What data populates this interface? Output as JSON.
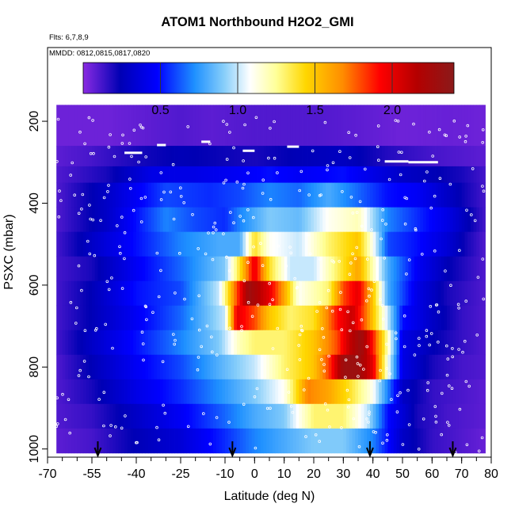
{
  "chart_data": {
    "type": "heatmap",
    "title": "ATOM1 Northbound H2O2_GMI",
    "subtitle_flights": "Flts: 6,7,8,9",
    "subtitle_dates": "MMDD: 0812,0815,0817,0820",
    "xlabel": "Latitude (deg N)",
    "ylabel": "PSXC (mbar)",
    "xlim": [
      -70,
      80
    ],
    "ylim": [
      1020,
      20
    ],
    "x_ticks": [
      -70,
      -55,
      -40,
      -25,
      -10,
      0,
      10,
      20,
      30,
      40,
      50,
      60,
      70,
      80
    ],
    "x_minor_step": 5,
    "y_ticks": [
      200,
      400,
      600,
      800,
      1000
    ],
    "colorbar": {
      "range": [
        0,
        2.4
      ],
      "ticks": [
        0.5,
        1.0,
        1.5,
        2.0
      ],
      "tick_labels": [
        "0.5",
        "1.0",
        "1.5",
        "2.0"
      ],
      "colors": [
        "#8a2be2",
        "#0000b4",
        "#0000ff",
        "#1e90ff",
        "#87cefa",
        "#ffffff",
        "#ffff99",
        "#ffd700",
        "#ff8c00",
        "#ff0000",
        "#b40000",
        "#8b1a1a"
      ],
      "color_positions": [
        0.0,
        0.1,
        0.2,
        0.3,
        0.38,
        0.45,
        0.52,
        0.6,
        0.7,
        0.8,
        0.9,
        1.0
      ]
    },
    "lat_range": [
      -67,
      78
    ],
    "levels": [
      {
        "p_top": 160,
        "p_bot": 260,
        "values": [
          [
            -67,
            0.05
          ],
          [
            -50,
            0.05
          ],
          [
            -35,
            0.08
          ],
          [
            -25,
            0.1
          ],
          [
            -15,
            0.08
          ],
          [
            0,
            0.1
          ],
          [
            20,
            0.1
          ],
          [
            35,
            0.08
          ],
          [
            50,
            0.05
          ],
          [
            65,
            0.06
          ],
          [
            78,
            0.05
          ]
        ]
      },
      {
        "p_top": 260,
        "p_bot": 310,
        "values": [
          [
            -67,
            0.08
          ],
          [
            -55,
            0.12
          ],
          [
            -40,
            0.2
          ],
          [
            -25,
            0.25
          ],
          [
            -10,
            0.22
          ],
          [
            0,
            0.2
          ],
          [
            15,
            0.25
          ],
          [
            30,
            0.28
          ],
          [
            45,
            0.18
          ],
          [
            60,
            0.12
          ],
          [
            78,
            0.08
          ]
        ]
      },
      {
        "p_top": 310,
        "p_bot": 350,
        "values": [
          [
            -67,
            0.1
          ],
          [
            -50,
            0.2
          ],
          [
            -35,
            0.4
          ],
          [
            -20,
            0.4
          ],
          [
            -5,
            0.45
          ],
          [
            5,
            0.5
          ],
          [
            15,
            0.45
          ],
          [
            30,
            0.5
          ],
          [
            40,
            0.4
          ],
          [
            50,
            0.3
          ],
          [
            60,
            0.25
          ],
          [
            70,
            0.2
          ],
          [
            78,
            0.12
          ]
        ]
      },
      {
        "p_top": 350,
        "p_bot": 410,
        "values": [
          [
            -67,
            0.1
          ],
          [
            -50,
            0.3
          ],
          [
            -30,
            0.6
          ],
          [
            -15,
            0.55
          ],
          [
            -5,
            0.6
          ],
          [
            5,
            0.7
          ],
          [
            15,
            0.65
          ],
          [
            25,
            0.8
          ],
          [
            35,
            0.65
          ],
          [
            45,
            0.5
          ],
          [
            55,
            0.45
          ],
          [
            65,
            0.3
          ],
          [
            72,
            0.2
          ],
          [
            78,
            0.12
          ]
        ]
      },
      {
        "p_top": 410,
        "p_bot": 470,
        "values": [
          [
            -67,
            0.1
          ],
          [
            -50,
            0.3
          ],
          [
            -30,
            0.7
          ],
          [
            -20,
            0.6
          ],
          [
            -10,
            0.55
          ],
          [
            -5,
            0.7
          ],
          [
            5,
            0.9
          ],
          [
            15,
            0.85
          ],
          [
            25,
            1.1
          ],
          [
            35,
            1.2
          ],
          [
            45,
            0.7
          ],
          [
            55,
            0.55
          ],
          [
            65,
            0.4
          ],
          [
            72,
            0.25
          ],
          [
            78,
            0.12
          ]
        ]
      },
      {
        "p_top": 470,
        "p_bot": 530,
        "values": [
          [
            -67,
            0.12
          ],
          [
            -55,
            0.3
          ],
          [
            -40,
            0.5
          ],
          [
            -25,
            0.7
          ],
          [
            -12,
            0.8
          ],
          [
            -5,
            0.8
          ],
          [
            0,
            1.4
          ],
          [
            5,
            1.1
          ],
          [
            15,
            1.0
          ],
          [
            25,
            1.3
          ],
          [
            35,
            1.5
          ],
          [
            40,
            1.1
          ],
          [
            45,
            0.6
          ],
          [
            55,
            0.5
          ],
          [
            65,
            0.35
          ],
          [
            72,
            0.2
          ],
          [
            78,
            0.1
          ]
        ]
      },
      {
        "p_top": 530,
        "p_bot": 590,
        "values": [
          [
            -67,
            0.12
          ],
          [
            -55,
            0.2
          ],
          [
            -40,
            0.45
          ],
          [
            -25,
            0.65
          ],
          [
            -10,
            0.9
          ],
          [
            -5,
            1.4
          ],
          [
            0,
            2.0
          ],
          [
            5,
            1.4
          ],
          [
            12,
            1.0
          ],
          [
            20,
            1.0
          ],
          [
            30,
            1.4
          ],
          [
            35,
            1.6
          ],
          [
            40,
            1.2
          ],
          [
            45,
            0.8
          ],
          [
            55,
            0.45
          ],
          [
            65,
            0.25
          ],
          [
            78,
            0.1
          ]
        ]
      },
      {
        "p_top": 590,
        "p_bot": 650,
        "values": [
          [
            -67,
            0.12
          ],
          [
            -55,
            0.25
          ],
          [
            -40,
            0.5
          ],
          [
            -25,
            0.6
          ],
          [
            -12,
            1.0
          ],
          [
            -6,
            1.8
          ],
          [
            -2,
            2.3
          ],
          [
            5,
            2.0
          ],
          [
            10,
            1.6
          ],
          [
            15,
            1.1
          ],
          [
            25,
            1.3
          ],
          [
            30,
            1.8
          ],
          [
            35,
            2.0
          ],
          [
            40,
            1.5
          ],
          [
            45,
            0.8
          ],
          [
            55,
            0.4
          ],
          [
            65,
            0.2
          ],
          [
            78,
            0.1
          ]
        ]
      },
      {
        "p_top": 650,
        "p_bot": 710,
        "values": [
          [
            -67,
            0.12
          ],
          [
            -55,
            0.25
          ],
          [
            -40,
            0.45
          ],
          [
            -25,
            0.65
          ],
          [
            -10,
            1.0
          ],
          [
            -6,
            2.0
          ],
          [
            0,
            1.8
          ],
          [
            5,
            1.5
          ],
          [
            12,
            1.3
          ],
          [
            20,
            1.4
          ],
          [
            28,
            1.9
          ],
          [
            33,
            2.1
          ],
          [
            38,
            1.7
          ],
          [
            43,
            1.2
          ],
          [
            50,
            0.5
          ],
          [
            60,
            0.3
          ],
          [
            70,
            0.15
          ],
          [
            78,
            0.1
          ]
        ]
      },
      {
        "p_top": 710,
        "p_bot": 770,
        "values": [
          [
            -67,
            0.12
          ],
          [
            -55,
            0.3
          ],
          [
            -40,
            0.5
          ],
          [
            -25,
            0.7
          ],
          [
            -12,
            0.9
          ],
          [
            -5,
            1.2
          ],
          [
            0,
            1.3
          ],
          [
            10,
            1.3
          ],
          [
            20,
            1.5
          ],
          [
            28,
            1.8
          ],
          [
            32,
            2.1
          ],
          [
            36,
            2.3
          ],
          [
            40,
            1.9
          ],
          [
            45,
            1.2
          ],
          [
            50,
            0.4
          ],
          [
            60,
            0.25
          ],
          [
            70,
            0.15
          ],
          [
            78,
            0.1
          ]
        ]
      },
      {
        "p_top": 770,
        "p_bot": 830,
        "values": [
          [
            -67,
            0.1
          ],
          [
            -55,
            0.25
          ],
          [
            -40,
            0.45
          ],
          [
            -25,
            0.6
          ],
          [
            -10,
            0.85
          ],
          [
            0,
            1.0
          ],
          [
            10,
            1.3
          ],
          [
            20,
            1.5
          ],
          [
            25,
            1.8
          ],
          [
            30,
            2.3
          ],
          [
            35,
            2.3
          ],
          [
            40,
            2.0
          ],
          [
            45,
            1.1
          ],
          [
            50,
            0.4
          ],
          [
            60,
            0.2
          ],
          [
            70,
            0.12
          ],
          [
            78,
            0.1
          ]
        ]
      },
      {
        "p_top": 830,
        "p_bot": 890,
        "values": [
          [
            -67,
            0.1
          ],
          [
            -55,
            0.2
          ],
          [
            -40,
            0.4
          ],
          [
            -25,
            0.55
          ],
          [
            -10,
            0.75
          ],
          [
            0,
            0.9
          ],
          [
            10,
            1.1
          ],
          [
            18,
            1.7
          ],
          [
            25,
            1.6
          ],
          [
            32,
            1.4
          ],
          [
            40,
            1.1
          ],
          [
            45,
            0.7
          ],
          [
            50,
            0.3
          ],
          [
            60,
            0.15
          ],
          [
            78,
            0.08
          ]
        ]
      },
      {
        "p_top": 890,
        "p_bot": 950,
        "values": [
          [
            -67,
            0.1
          ],
          [
            -55,
            0.15
          ],
          [
            -40,
            0.3
          ],
          [
            -25,
            0.45
          ],
          [
            -10,
            0.65
          ],
          [
            0,
            0.8
          ],
          [
            10,
            0.9
          ],
          [
            20,
            1.3
          ],
          [
            30,
            1.3
          ],
          [
            38,
            1.0
          ],
          [
            45,
            0.5
          ],
          [
            55,
            0.2
          ],
          [
            65,
            0.12
          ],
          [
            78,
            0.08
          ]
        ]
      },
      {
        "p_top": 950,
        "p_bot": 1010,
        "values": [
          [
            -67,
            0.08
          ],
          [
            -55,
            0.12
          ],
          [
            -40,
            0.25
          ],
          [
            -25,
            0.35
          ],
          [
            -10,
            0.55
          ],
          [
            0,
            0.7
          ],
          [
            10,
            0.8
          ],
          [
            20,
            0.9
          ],
          [
            30,
            0.9
          ],
          [
            40,
            0.7
          ],
          [
            50,
            0.3
          ],
          [
            60,
            0.15
          ],
          [
            70,
            0.1
          ],
          [
            78,
            0.06
          ]
        ]
      }
    ],
    "arrows_lat": [
      -53,
      -7.5,
      39,
      67
    ]
  }
}
